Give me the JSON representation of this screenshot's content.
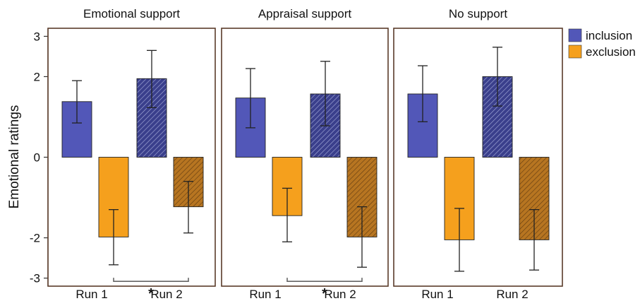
{
  "colors": {
    "inclusion": "#5257b8",
    "exclusion": "#f5a01d",
    "inclusion_run2": "#3a3f8c",
    "exclusion_run2": "#b77521"
  },
  "chart_data": {
    "type": "bar",
    "ylabel": "Emotional ratings",
    "ylim": [
      -3.2,
      3.2
    ],
    "yticks": [
      3,
      2,
      0,
      -2,
      -3
    ],
    "yticks_labels": [
      "3",
      "2",
      "0",
      "-2",
      "-3"
    ],
    "legend": {
      "position": "top-right",
      "entries": [
        "inclusion",
        "exclusion"
      ]
    },
    "categories": [
      "Run 1",
      "Run 2"
    ],
    "panels": [
      {
        "title": "Emotional support",
        "bars": [
          {
            "run": "Run 1",
            "condition": "inclusion",
            "value": 1.38,
            "err_low": 0.85,
            "err_high": 1.9,
            "hatched": false
          },
          {
            "run": "Run 1",
            "condition": "exclusion",
            "value": -1.98,
            "err_low": -2.67,
            "err_high": -1.3,
            "hatched": false
          },
          {
            "run": "Run 2",
            "condition": "inclusion",
            "value": 1.95,
            "err_low": 1.23,
            "err_high": 2.65,
            "hatched": true
          },
          {
            "run": "Run 2",
            "condition": "exclusion",
            "value": -1.23,
            "err_low": -1.88,
            "err_high": -0.6,
            "hatched": true
          }
        ],
        "significance": {
          "label": "*",
          "y": -3.08
        }
      },
      {
        "title": "Appraisal support",
        "bars": [
          {
            "run": "Run 1",
            "condition": "inclusion",
            "value": 1.47,
            "err_low": 0.73,
            "err_high": 2.2,
            "hatched": false
          },
          {
            "run": "Run 1",
            "condition": "exclusion",
            "value": -1.45,
            "err_low": -2.1,
            "err_high": -0.77,
            "hatched": false
          },
          {
            "run": "Run 2",
            "condition": "inclusion",
            "value": 1.57,
            "err_low": 0.78,
            "err_high": 2.38,
            "hatched": true
          },
          {
            "run": "Run 2",
            "condition": "exclusion",
            "value": -1.98,
            "err_low": -2.73,
            "err_high": -1.23,
            "hatched": true
          }
        ],
        "significance": {
          "label": "*",
          "y": -3.08
        }
      },
      {
        "title": "No support",
        "bars": [
          {
            "run": "Run 1",
            "condition": "inclusion",
            "value": 1.57,
            "err_low": 0.88,
            "err_high": 2.27,
            "hatched": false
          },
          {
            "run": "Run 1",
            "condition": "exclusion",
            "value": -2.05,
            "err_low": -2.83,
            "err_high": -1.27,
            "hatched": false
          },
          {
            "run": "Run 2",
            "condition": "inclusion",
            "value": 2.0,
            "err_low": 1.27,
            "err_high": 2.73,
            "hatched": true
          },
          {
            "run": "Run 2",
            "condition": "exclusion",
            "value": -2.05,
            "err_low": -2.8,
            "err_high": -1.3,
            "hatched": true
          }
        ],
        "significance": null
      }
    ]
  }
}
